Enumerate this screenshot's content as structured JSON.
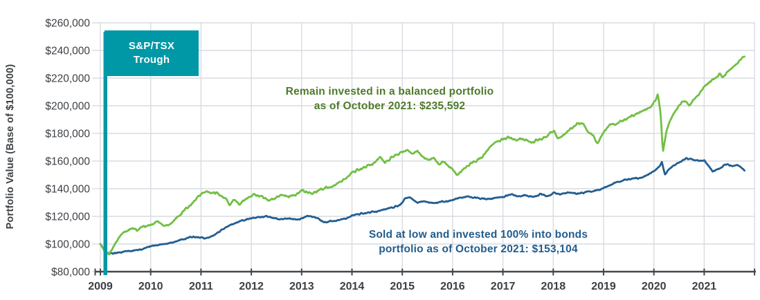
{
  "y_axis": {
    "title": "Portfolio Value (Base of $100,000)",
    "tick_labels": [
      "$80,000",
      "$100,000",
      "$120,000",
      "$140,000",
      "$160,000",
      "$180,000",
      "$200,000",
      "$220,000",
      "$240,000",
      "$260,000"
    ],
    "min": 80000,
    "max": 260000,
    "step": 20000
  },
  "x_axis": {
    "tick_labels": [
      "2009",
      "2010",
      "2011",
      "2012",
      "2013",
      "2014",
      "2015",
      "2016",
      "2017",
      "2018",
      "2019",
      "2020",
      "2021"
    ]
  },
  "event_marker": {
    "label_line1": "S&P/TSX",
    "label_line2": "Trough",
    "x_year": 2009.1,
    "color": "#0098A6"
  },
  "annotations": {
    "balanced": {
      "line1": "Remain invested in a balanced portfolio",
      "line2": "as of October 2021: $235,592",
      "color": "#4E7A2B"
    },
    "bonds": {
      "line1": "Sold at low and invested 100% into bonds",
      "line2": "portfolio as of October 2021: $153,104",
      "color": "#1F5C8E"
    }
  },
  "chart_data": {
    "type": "line",
    "x_unit": "year_fraction",
    "x_range": [
      2009.0,
      2021.8
    ],
    "ylim": [
      80000,
      260000
    ],
    "grid": true,
    "legend_position": "none",
    "series": [
      {
        "name": "Sold at low and invested 100% into bonds portfolio",
        "color": "#235E91",
        "final_value": 153104,
        "final_label": "October 2021",
        "jitter": 1500,
        "points": [
          [
            2009.0,
            100000
          ],
          [
            2009.06,
            96500
          ],
          [
            2009.12,
            93500
          ],
          [
            2009.18,
            93000
          ],
          [
            2009.3,
            93500
          ],
          [
            2009.45,
            94500
          ],
          [
            2009.6,
            95000
          ],
          [
            2009.75,
            95500
          ],
          [
            2009.9,
            97000
          ],
          [
            2010.0,
            98500
          ],
          [
            2010.15,
            99500
          ],
          [
            2010.3,
            100000
          ],
          [
            2010.45,
            101500
          ],
          [
            2010.6,
            103000
          ],
          [
            2010.75,
            104500
          ],
          [
            2010.85,
            105500
          ],
          [
            2011.0,
            104500
          ],
          [
            2011.1,
            104000
          ],
          [
            2011.25,
            106000
          ],
          [
            2011.4,
            110000
          ],
          [
            2011.55,
            113000
          ],
          [
            2011.7,
            115500
          ],
          [
            2011.85,
            117500
          ],
          [
            2012.0,
            118500
          ],
          [
            2012.15,
            119500
          ],
          [
            2012.3,
            120000
          ],
          [
            2012.45,
            118500
          ],
          [
            2012.6,
            118000
          ],
          [
            2012.75,
            118500
          ],
          [
            2012.9,
            117500
          ],
          [
            2013.0,
            118500
          ],
          [
            2013.15,
            120500
          ],
          [
            2013.3,
            119000
          ],
          [
            2013.45,
            115500
          ],
          [
            2013.6,
            116500
          ],
          [
            2013.75,
            117500
          ],
          [
            2013.9,
            118500
          ],
          [
            2014.0,
            120500
          ],
          [
            2014.2,
            122000
          ],
          [
            2014.4,
            123000
          ],
          [
            2014.6,
            124500
          ],
          [
            2014.8,
            126500
          ],
          [
            2014.95,
            128000
          ],
          [
            2015.05,
            132500
          ],
          [
            2015.15,
            134000
          ],
          [
            2015.3,
            130000
          ],
          [
            2015.45,
            131000
          ],
          [
            2015.6,
            129500
          ],
          [
            2015.75,
            130500
          ],
          [
            2015.9,
            131000
          ],
          [
            2016.0,
            132000
          ],
          [
            2016.15,
            133500
          ],
          [
            2016.3,
            134500
          ],
          [
            2016.45,
            133500
          ],
          [
            2016.6,
            133000
          ],
          [
            2016.75,
            132500
          ],
          [
            2016.9,
            133500
          ],
          [
            2017.0,
            134000
          ],
          [
            2017.15,
            136000
          ],
          [
            2017.3,
            134500
          ],
          [
            2017.45,
            135500
          ],
          [
            2017.6,
            134000
          ],
          [
            2017.75,
            136000
          ],
          [
            2017.9,
            134500
          ],
          [
            2018.0,
            137000
          ],
          [
            2018.15,
            136000
          ],
          [
            2018.3,
            137500
          ],
          [
            2018.45,
            136500
          ],
          [
            2018.6,
            137000
          ],
          [
            2018.75,
            138000
          ],
          [
            2018.9,
            139000
          ],
          [
            2019.0,
            140500
          ],
          [
            2019.15,
            143000
          ],
          [
            2019.3,
            145000
          ],
          [
            2019.45,
            146500
          ],
          [
            2019.6,
            147500
          ],
          [
            2019.75,
            148000
          ],
          [
            2019.9,
            150500
          ],
          [
            2020.0,
            153000
          ],
          [
            2020.1,
            155500
          ],
          [
            2020.16,
            159000
          ],
          [
            2020.22,
            150500
          ],
          [
            2020.32,
            155000
          ],
          [
            2020.45,
            158000
          ],
          [
            2020.55,
            160000
          ],
          [
            2020.65,
            162000
          ],
          [
            2020.8,
            161000
          ],
          [
            2020.9,
            160000
          ],
          [
            2021.0,
            160500
          ],
          [
            2021.1,
            156000
          ],
          [
            2021.17,
            152500
          ],
          [
            2021.3,
            154500
          ],
          [
            2021.45,
            158000
          ],
          [
            2021.55,
            156000
          ],
          [
            2021.65,
            157000
          ],
          [
            2021.73,
            155500
          ],
          [
            2021.8,
            153104
          ]
        ]
      },
      {
        "name": "Remain invested in a balanced portfolio",
        "color": "#72BF44",
        "final_value": 235592,
        "final_label": "October 2021",
        "jitter": 2800,
        "points": [
          [
            2009.0,
            100000
          ],
          [
            2009.06,
            96500
          ],
          [
            2009.12,
            93500
          ],
          [
            2009.18,
            93000
          ],
          [
            2009.26,
            98000
          ],
          [
            2009.34,
            103500
          ],
          [
            2009.45,
            108000
          ],
          [
            2009.55,
            110000
          ],
          [
            2009.65,
            111000
          ],
          [
            2009.73,
            110000
          ],
          [
            2009.82,
            112000
          ],
          [
            2009.92,
            113000
          ],
          [
            2010.0,
            114000
          ],
          [
            2010.13,
            116500
          ],
          [
            2010.27,
            113000
          ],
          [
            2010.4,
            115000
          ],
          [
            2010.55,
            120000
          ],
          [
            2010.7,
            125500
          ],
          [
            2010.85,
            130500
          ],
          [
            2011.0,
            136000
          ],
          [
            2011.1,
            138000
          ],
          [
            2011.2,
            136500
          ],
          [
            2011.3,
            137500
          ],
          [
            2011.42,
            134000
          ],
          [
            2011.5,
            132500
          ],
          [
            2011.57,
            128000
          ],
          [
            2011.65,
            132500
          ],
          [
            2011.75,
            129000
          ],
          [
            2011.85,
            131500
          ],
          [
            2011.95,
            133500
          ],
          [
            2012.05,
            136000
          ],
          [
            2012.2,
            134500
          ],
          [
            2012.35,
            131000
          ],
          [
            2012.5,
            134000
          ],
          [
            2012.62,
            135500
          ],
          [
            2012.75,
            134000
          ],
          [
            2012.9,
            136000
          ],
          [
            2013.0,
            138500
          ],
          [
            2013.1,
            138000
          ],
          [
            2013.22,
            136500
          ],
          [
            2013.35,
            139000
          ],
          [
            2013.5,
            140500
          ],
          [
            2013.65,
            142500
          ],
          [
            2013.8,
            145500
          ],
          [
            2013.92,
            148500
          ],
          [
            2014.0,
            151500
          ],
          [
            2014.15,
            154000
          ],
          [
            2014.3,
            156000
          ],
          [
            2014.45,
            159000
          ],
          [
            2014.57,
            163000
          ],
          [
            2014.65,
            158500
          ],
          [
            2014.78,
            162500
          ],
          [
            2014.9,
            165000
          ],
          [
            2015.0,
            166000
          ],
          [
            2015.1,
            168500
          ],
          [
            2015.2,
            165500
          ],
          [
            2015.3,
            167000
          ],
          [
            2015.42,
            163000
          ],
          [
            2015.52,
            160500
          ],
          [
            2015.62,
            163000
          ],
          [
            2015.72,
            157500
          ],
          [
            2015.82,
            160000
          ],
          [
            2015.92,
            156500
          ],
          [
            2016.0,
            154000
          ],
          [
            2016.08,
            150000
          ],
          [
            2016.18,
            153000
          ],
          [
            2016.3,
            157000
          ],
          [
            2016.45,
            160000
          ],
          [
            2016.6,
            163500
          ],
          [
            2016.72,
            169000
          ],
          [
            2016.85,
            173500
          ],
          [
            2017.0,
            176000
          ],
          [
            2017.12,
            177000
          ],
          [
            2017.25,
            175500
          ],
          [
            2017.4,
            176500
          ],
          [
            2017.55,
            173500
          ],
          [
            2017.7,
            175000
          ],
          [
            2017.85,
            177500
          ],
          [
            2017.95,
            180500
          ],
          [
            2018.02,
            182000
          ],
          [
            2018.09,
            176000
          ],
          [
            2018.22,
            179500
          ],
          [
            2018.35,
            183500
          ],
          [
            2018.5,
            187500
          ],
          [
            2018.6,
            186000
          ],
          [
            2018.7,
            181000
          ],
          [
            2018.8,
            178000
          ],
          [
            2018.88,
            172500
          ],
          [
            2019.0,
            181000
          ],
          [
            2019.1,
            185500
          ],
          [
            2019.22,
            186500
          ],
          [
            2019.35,
            188500
          ],
          [
            2019.5,
            191500
          ],
          [
            2019.6,
            193500
          ],
          [
            2019.72,
            195500
          ],
          [
            2019.85,
            197500
          ],
          [
            2019.95,
            200000
          ],
          [
            2020.03,
            203500
          ],
          [
            2020.08,
            208000
          ],
          [
            2020.13,
            196000
          ],
          [
            2020.18,
            166500
          ],
          [
            2020.25,
            182000
          ],
          [
            2020.33,
            190000
          ],
          [
            2020.42,
            196000
          ],
          [
            2020.5,
            200000
          ],
          [
            2020.6,
            204000
          ],
          [
            2020.7,
            200500
          ],
          [
            2020.8,
            204500
          ],
          [
            2020.9,
            208500
          ],
          [
            2021.0,
            214000
          ],
          [
            2021.1,
            217000
          ],
          [
            2021.2,
            219500
          ],
          [
            2021.3,
            222500
          ],
          [
            2021.38,
            221000
          ],
          [
            2021.5,
            225500
          ],
          [
            2021.6,
            228500
          ],
          [
            2021.7,
            232000
          ],
          [
            2021.76,
            235000
          ],
          [
            2021.8,
            235592
          ]
        ]
      }
    ]
  }
}
